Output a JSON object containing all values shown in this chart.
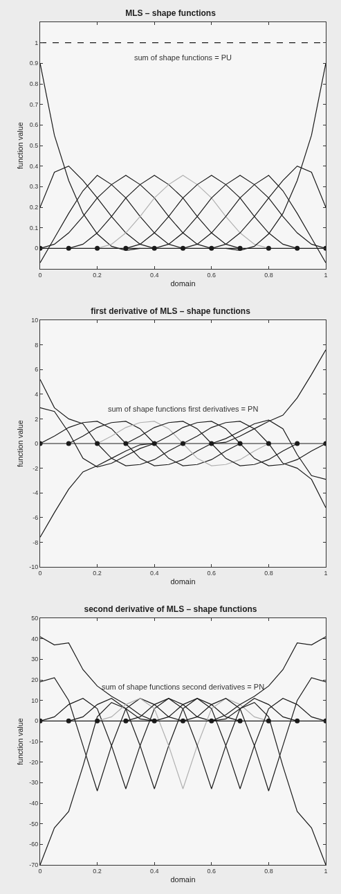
{
  "chart_data": [
    {
      "type": "line",
      "title": "MLS – shape functions",
      "xlabel": "domain",
      "ylabel": "function value",
      "xlim": [
        0,
        1
      ],
      "xticks": [
        0,
        0.2,
        0.4,
        0.6,
        0.8,
        1
      ],
      "ylim": [
        -0.1,
        1.1
      ],
      "yticks": [
        0,
        0.1,
        0.2,
        0.3,
        0.4,
        0.5,
        0.6,
        0.7,
        0.8,
        0.9,
        1
      ],
      "grid": false,
      "marker": "none",
      "line_style": "solid",
      "annotations": [
        "sum of shape functions = PU"
      ],
      "x": [
        0,
        0.05,
        0.1,
        0.15,
        0.2,
        0.25,
        0.3,
        0.35,
        0.4,
        0.45,
        0.5,
        0.55,
        0.6,
        0.65,
        0.7,
        0.75,
        0.8,
        0.85,
        0.9,
        0.95,
        1
      ],
      "series": [
        {
          "color": "#1a1a1a",
          "values": [
            0.9,
            0.55,
            0.33,
            0.17,
            0.07,
            0.01,
            -0.01,
            0,
            null,
            null,
            null,
            null,
            null,
            null,
            null,
            null,
            null,
            null,
            null,
            null,
            null
          ]
        },
        {
          "color": "#1a1a1a",
          "values": [
            0.2,
            0.37,
            0.4,
            0.33,
            0.245,
            0.155,
            0.075,
            0.02,
            0,
            null,
            null,
            null,
            null,
            null,
            null,
            null,
            null,
            null,
            null,
            null,
            null
          ]
        },
        {
          "color": "#1a1a1a",
          "values": [
            -0.07,
            0.05,
            0.17,
            0.28,
            0.355,
            0.31,
            0.245,
            0.155,
            0.075,
            0.02,
            0,
            null,
            null,
            null,
            null,
            null,
            null,
            null,
            null,
            null,
            null
          ]
        },
        {
          "color": "#1a1a1a",
          "values": [
            0,
            0.02,
            0.075,
            0.155,
            0.245,
            0.31,
            0.355,
            0.31,
            0.245,
            0.155,
            0.075,
            0.02,
            0,
            null,
            null,
            null,
            null,
            null,
            null,
            null,
            null
          ]
        },
        {
          "color": "#1a1a1a",
          "values": [
            null,
            null,
            0,
            0.02,
            0.075,
            0.155,
            0.245,
            0.31,
            0.355,
            0.31,
            0.245,
            0.155,
            0.075,
            0.02,
            0,
            null,
            null,
            null,
            null,
            null,
            null
          ]
        },
        {
          "color": "#b0b0b0",
          "values": [
            null,
            null,
            null,
            null,
            0,
            0.02,
            0.075,
            0.155,
            0.245,
            0.31,
            0.355,
            0.31,
            0.245,
            0.155,
            0.075,
            0.02,
            0,
            null,
            null,
            null,
            null
          ]
        },
        {
          "color": "#1a1a1a",
          "values": [
            null,
            null,
            null,
            null,
            null,
            null,
            0,
            0.02,
            0.075,
            0.155,
            0.245,
            0.31,
            0.355,
            0.31,
            0.245,
            0.155,
            0.075,
            0.02,
            0,
            null,
            null
          ]
        },
        {
          "color": "#1a1a1a",
          "values": [
            null,
            null,
            null,
            null,
            null,
            null,
            null,
            null,
            0,
            0.02,
            0.075,
            0.155,
            0.245,
            0.31,
            0.355,
            0.31,
            0.245,
            0.155,
            0.075,
            0.02,
            0
          ]
        },
        {
          "color": "#1a1a1a",
          "values": [
            null,
            null,
            null,
            null,
            null,
            null,
            null,
            null,
            null,
            null,
            0,
            0.02,
            0.075,
            0.155,
            0.245,
            0.31,
            0.355,
            0.28,
            0.17,
            0.05,
            -0.07
          ]
        },
        {
          "color": "#1a1a1a",
          "values": [
            null,
            null,
            null,
            null,
            null,
            null,
            null,
            null,
            null,
            null,
            null,
            null,
            0,
            0.02,
            0.075,
            0.155,
            0.245,
            0.33,
            0.4,
            0.37,
            0.2
          ]
        },
        {
          "color": "#1a1a1a",
          "values": [
            null,
            null,
            null,
            null,
            null,
            null,
            null,
            null,
            null,
            null,
            null,
            null,
            null,
            0,
            -0.01,
            0.01,
            0.07,
            0.17,
            0.33,
            0.55,
            0.9
          ]
        },
        {
          "color": "#1a1a1a",
          "line_style": "dashed",
          "x": [
            0,
            1
          ],
          "values": [
            1,
            1
          ]
        },
        {
          "color": "#1a1a1a",
          "x": [
            0,
            1
          ],
          "values": [
            0,
            0
          ]
        },
        {
          "type": "scatter",
          "color": "#1a1a1a",
          "marker": "circle",
          "x": [
            0,
            0.1,
            0.2,
            0.3,
            0.4,
            0.5,
            0.6,
            0.7,
            0.8,
            0.9,
            1
          ],
          "values": [
            0,
            0,
            0,
            0,
            0,
            0,
            0,
            0,
            0,
            0,
            0
          ]
        }
      ]
    },
    {
      "type": "line",
      "title": "first derivative of MLS – shape functions",
      "xlabel": "domain",
      "ylabel": "function value",
      "xlim": [
        0,
        1
      ],
      "xticks": [
        0,
        0.2,
        0.4,
        0.6,
        0.8,
        1
      ],
      "ylim": [
        -10,
        10
      ],
      "yticks": [
        -10,
        -8,
        -6,
        -4,
        -2,
        0,
        2,
        4,
        6,
        8,
        10
      ],
      "grid": false,
      "marker": "none",
      "line_style": "solid",
      "annotations": [
        "sum of shape functions first derivatives = PN"
      ],
      "x": [
        0,
        0.05,
        0.1,
        0.15,
        0.2,
        0.25,
        0.3,
        0.35,
        0.4,
        0.45,
        0.5,
        0.55,
        0.6,
        0.65,
        0.7,
        0.75,
        0.8,
        0.85,
        0.9,
        0.95,
        1
      ],
      "series": [
        {
          "color": "#1a1a1a",
          "values": [
            -7.6,
            -5.6,
            -3.7,
            -2.3,
            -1.8,
            -1.2,
            -0.6,
            -0.1,
            0,
            null,
            null,
            null,
            null,
            null,
            null,
            null,
            null,
            null,
            null,
            null,
            null
          ]
        },
        {
          "color": "#1a1a1a",
          "values": [
            2.9,
            2.6,
            0.9,
            -1.2,
            -1.9,
            -1.6,
            -1.0,
            -0.4,
            0,
            null,
            null,
            null,
            null,
            null,
            null,
            null,
            null,
            null,
            null,
            null,
            null
          ]
        },
        {
          "color": "#1a1a1a",
          "values": [
            5.2,
            2.9,
            2.0,
            1.6,
            0,
            -1.2,
            -1.8,
            -1.7,
            -1.3,
            -0.6,
            0,
            null,
            null,
            null,
            null,
            null,
            null,
            null,
            null,
            null,
            null
          ]
        },
        {
          "color": "#1a1a1a",
          "values": [
            0,
            0.6,
            1.3,
            1.7,
            1.8,
            1.2,
            0,
            -1.2,
            -1.8,
            -1.7,
            -1.3,
            -0.6,
            0,
            null,
            null,
            null,
            null,
            null,
            null,
            null,
            null
          ]
        },
        {
          "color": "#1a1a1a",
          "values": [
            null,
            null,
            0,
            0.6,
            1.3,
            1.7,
            1.8,
            1.2,
            0,
            -1.2,
            -1.8,
            -1.7,
            -1.3,
            -0.6,
            0,
            null,
            null,
            null,
            null,
            null,
            null
          ]
        },
        {
          "color": "#b0b0b0",
          "values": [
            null,
            null,
            null,
            null,
            0,
            0.6,
            1.3,
            1.7,
            1.8,
            1.2,
            0,
            -1.2,
            -1.8,
            -1.7,
            -1.3,
            -0.6,
            0,
            null,
            null,
            null,
            null
          ]
        },
        {
          "color": "#1a1a1a",
          "values": [
            null,
            null,
            null,
            null,
            null,
            null,
            0,
            0.6,
            1.3,
            1.7,
            1.8,
            1.2,
            0,
            -1.2,
            -1.8,
            -1.7,
            -1.3,
            -0.6,
            0,
            null,
            null
          ]
        },
        {
          "color": "#1a1a1a",
          "values": [
            null,
            null,
            null,
            null,
            null,
            null,
            null,
            null,
            0,
            0.6,
            1.3,
            1.7,
            1.8,
            1.2,
            0,
            -1.2,
            -1.8,
            -1.7,
            -1.3,
            -0.6,
            0
          ]
        },
        {
          "color": "#1a1a1a",
          "values": [
            null,
            null,
            null,
            null,
            null,
            null,
            null,
            null,
            null,
            null,
            0,
            0.6,
            1.3,
            1.7,
            1.8,
            1.2,
            0,
            -1.6,
            -2.0,
            -2.9,
            -5.2
          ]
        },
        {
          "color": "#1a1a1a",
          "values": [
            null,
            null,
            null,
            null,
            null,
            null,
            null,
            null,
            null,
            null,
            null,
            null,
            0,
            0.4,
            1.0,
            1.6,
            1.9,
            1.2,
            -0.9,
            -2.6,
            -2.9
          ]
        },
        {
          "color": "#1a1a1a",
          "values": [
            null,
            null,
            null,
            null,
            null,
            null,
            null,
            null,
            null,
            null,
            null,
            null,
            0,
            0.1,
            0.6,
            1.2,
            1.8,
            2.3,
            3.7,
            5.6,
            7.6
          ]
        },
        {
          "color": "#1a1a1a",
          "x": [
            0,
            1
          ],
          "values": [
            0,
            0
          ]
        },
        {
          "type": "scatter",
          "color": "#1a1a1a",
          "marker": "circle",
          "x": [
            0,
            0.1,
            0.2,
            0.3,
            0.4,
            0.5,
            0.6,
            0.7,
            0.8,
            0.9,
            1
          ],
          "values": [
            0,
            0,
            0,
            0,
            0,
            0,
            0,
            0,
            0,
            0,
            0
          ]
        }
      ]
    },
    {
      "type": "line",
      "title": "second derivative of MLS – shape functions",
      "xlabel": "domain",
      "ylabel": "function value",
      "xlim": [
        0,
        1
      ],
      "xticks": [
        0,
        0.2,
        0.4,
        0.6,
        0.8,
        1
      ],
      "ylim": [
        -70,
        50
      ],
      "yticks": [
        -70,
        -60,
        -50,
        -40,
        -30,
        -20,
        -10,
        0,
        10,
        20,
        30,
        40,
        50
      ],
      "grid": false,
      "marker": "none",
      "line_style": "solid",
      "annotations": [
        "sum of shape functions second derivatives = PN"
      ],
      "x": [
        0,
        0.05,
        0.1,
        0.15,
        0.2,
        0.25,
        0.3,
        0.35,
        0.4,
        0.45,
        0.5,
        0.55,
        0.6,
        0.65,
        0.7,
        0.75,
        0.8,
        0.85,
        0.9,
        0.95,
        1
      ],
      "series": [
        {
          "color": "#1a1a1a",
          "values": [
            41,
            37,
            38,
            25,
            17,
            12,
            8,
            3,
            0,
            null,
            null,
            null,
            null,
            null,
            null,
            null,
            null,
            null,
            null,
            null,
            null
          ]
        },
        {
          "color": "#1a1a1a",
          "values": [
            -70,
            -52,
            -44,
            -22,
            2,
            9,
            6,
            1,
            0,
            null,
            null,
            null,
            null,
            null,
            null,
            null,
            null,
            null,
            null,
            null,
            null
          ]
        },
        {
          "color": "#1a1a1a",
          "values": [
            19,
            21,
            10,
            -12,
            -34,
            -12,
            6,
            11,
            8,
            2,
            0,
            null,
            null,
            null,
            null,
            null,
            null,
            null,
            null,
            null,
            null
          ]
        },
        {
          "color": "#1a1a1a",
          "values": [
            0,
            2,
            8,
            11,
            6,
            -12,
            -33,
            -12,
            6,
            11,
            8,
            2,
            0,
            null,
            null,
            null,
            null,
            null,
            null,
            null,
            null
          ]
        },
        {
          "color": "#1a1a1a",
          "values": [
            null,
            null,
            0,
            2,
            8,
            11,
            6,
            -12,
            -33,
            -12,
            6,
            11,
            8,
            2,
            0,
            null,
            null,
            null,
            null,
            null,
            null
          ]
        },
        {
          "color": "#b0b0b0",
          "values": [
            null,
            null,
            null,
            null,
            0,
            2,
            8,
            11,
            6,
            -12,
            -33,
            -12,
            6,
            11,
            8,
            2,
            0,
            null,
            null,
            null,
            null
          ]
        },
        {
          "color": "#1a1a1a",
          "values": [
            null,
            null,
            null,
            null,
            null,
            null,
            0,
            2,
            8,
            11,
            6,
            -12,
            -33,
            -12,
            6,
            11,
            8,
            2,
            0,
            null,
            null
          ]
        },
        {
          "color": "#1a1a1a",
          "values": [
            null,
            null,
            null,
            null,
            null,
            null,
            null,
            null,
            0,
            2,
            8,
            11,
            6,
            -12,
            -33,
            -12,
            6,
            11,
            8,
            2,
            0
          ]
        },
        {
          "color": "#1a1a1a",
          "values": [
            null,
            null,
            null,
            null,
            null,
            null,
            null,
            null,
            null,
            null,
            0,
            2,
            8,
            11,
            6,
            -12,
            -34,
            -12,
            10,
            21,
            19
          ]
        },
        {
          "color": "#1a1a1a",
          "values": [
            null,
            null,
            null,
            null,
            null,
            null,
            null,
            null,
            null,
            null,
            null,
            null,
            0,
            1,
            6,
            9,
            2,
            -22,
            -44,
            -52,
            -70
          ]
        },
        {
          "color": "#1a1a1a",
          "values": [
            null,
            null,
            null,
            null,
            null,
            null,
            null,
            null,
            null,
            null,
            null,
            null,
            0,
            3,
            8,
            12,
            17,
            25,
            38,
            37,
            41
          ]
        },
        {
          "color": "#1a1a1a",
          "x": [
            0,
            1
          ],
          "values": [
            0,
            0
          ]
        },
        {
          "type": "scatter",
          "color": "#1a1a1a",
          "marker": "circle",
          "x": [
            0,
            0.1,
            0.2,
            0.3,
            0.4,
            0.5,
            0.6,
            0.7,
            0.8,
            0.9,
            1
          ],
          "values": [
            0,
            0,
            0,
            0,
            0,
            0,
            0,
            0,
            0,
            0,
            0
          ]
        }
      ]
    }
  ]
}
